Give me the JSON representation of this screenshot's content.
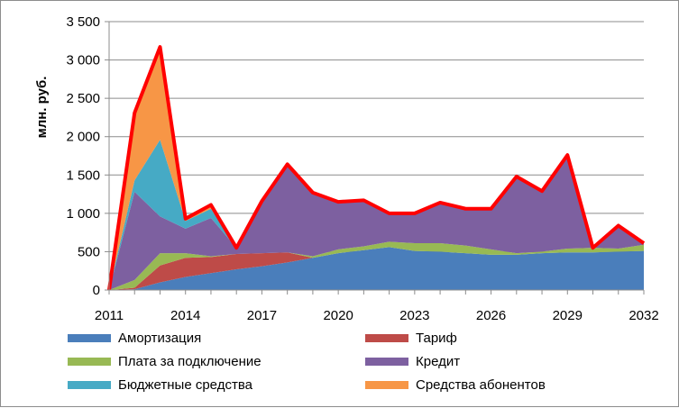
{
  "chart_data": {
    "type": "area",
    "stacked": true,
    "title": "",
    "xlabel": "",
    "ylabel": "млн. руб.",
    "ylim": [
      0,
      3500
    ],
    "y_ticks": [
      "0",
      "500",
      "1 000",
      "1 500",
      "2 000",
      "2 500",
      "3 000",
      "3 500"
    ],
    "y_tick_values": [
      0,
      500,
      1000,
      1500,
      2000,
      2500,
      3000,
      3500
    ],
    "x_tick_labels": [
      "2011",
      "2014",
      "2017",
      "2020",
      "2023",
      "2026",
      "2029",
      "2032"
    ],
    "x_tick_years": [
      2011,
      2014,
      2017,
      2020,
      2023,
      2026,
      2029,
      2032
    ],
    "x": [
      2011,
      2012,
      2013,
      2014,
      2015,
      2016,
      2017,
      2018,
      2019,
      2020,
      2021,
      2022,
      2023,
      2024,
      2025,
      2026,
      2027,
      2028,
      2029,
      2030,
      2031,
      2032
    ],
    "grid": true,
    "legend_position": "bottom",
    "series": [
      {
        "name": "Амортизация",
        "color": "#4a7ebb",
        "values": [
          0,
          10,
          100,
          170,
          220,
          270,
          310,
          360,
          420,
          480,
          520,
          560,
          510,
          500,
          480,
          460,
          460,
          480,
          490,
          490,
          500,
          510
        ]
      },
      {
        "name": "Тариф",
        "color": "#be4b48",
        "values": [
          0,
          20,
          220,
          250,
          210,
          200,
          170,
          130,
          0,
          0,
          0,
          0,
          0,
          0,
          0,
          0,
          0,
          0,
          0,
          0,
          0,
          0
        ]
      },
      {
        "name": "Плата за подключение",
        "color": "#98b954",
        "values": [
          0,
          100,
          160,
          60,
          10,
          0,
          0,
          0,
          20,
          50,
          50,
          70,
          100,
          110,
          100,
          70,
          20,
          20,
          50,
          60,
          40,
          80
        ]
      },
      {
        "name": "Кредит",
        "color": "#7d60a0",
        "values": [
          0,
          1150,
          480,
          320,
          500,
          80,
          680,
          1150,
          830,
          620,
          600,
          370,
          390,
          530,
          480,
          530,
          1000,
          790,
          1220,
          0,
          300,
          20
        ]
      },
      {
        "name": "Бюджетные средства",
        "color": "#46aac5",
        "values": [
          0,
          150,
          1000,
          100,
          120,
          0,
          0,
          0,
          0,
          0,
          0,
          0,
          0,
          0,
          0,
          0,
          0,
          0,
          0,
          0,
          0,
          0
        ]
      },
      {
        "name": "Средства абонентов",
        "color": "#f79646",
        "values": [
          0,
          880,
          1210,
          30,
          50,
          0,
          0,
          0,
          0,
          0,
          0,
          0,
          0,
          0,
          0,
          0,
          0,
          0,
          0,
          0,
          0,
          0
        ]
      }
    ],
    "total_line": {
      "color": "#ff0000",
      "values": [
        0,
        2310,
        3170,
        930,
        1110,
        550,
        1160,
        1640,
        1270,
        1150,
        1170,
        1000,
        1000,
        1140,
        1060,
        1060,
        1480,
        1290,
        1760,
        550,
        840,
        610
      ]
    }
  }
}
